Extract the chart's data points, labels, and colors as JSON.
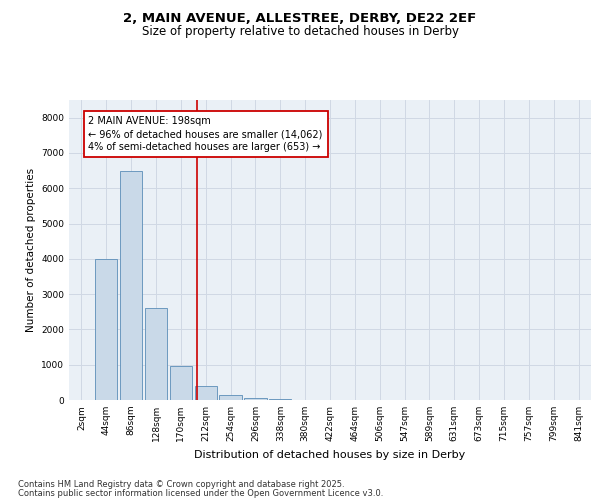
{
  "title_line1": "2, MAIN AVENUE, ALLESTREE, DERBY, DE22 2EF",
  "title_line2": "Size of property relative to detached houses in Derby",
  "xlabel": "Distribution of detached houses by size in Derby",
  "ylabel": "Number of detached properties",
  "bar_labels": [
    "2sqm",
    "44sqm",
    "86sqm",
    "128sqm",
    "170sqm",
    "212sqm",
    "254sqm",
    "296sqm",
    "338sqm",
    "380sqm",
    "422sqm",
    "464sqm",
    "506sqm",
    "547sqm",
    "589sqm",
    "631sqm",
    "673sqm",
    "715sqm",
    "757sqm",
    "799sqm",
    "841sqm"
  ],
  "bar_values": [
    10,
    4000,
    6500,
    2600,
    950,
    400,
    150,
    50,
    15,
    5,
    2,
    1,
    0,
    0,
    0,
    0,
    0,
    0,
    0,
    0,
    0
  ],
  "bar_color": "#c9d9e8",
  "bar_edge_color": "#5b8db8",
  "annotation_line1": "2 MAIN AVENUE: 198sqm",
  "annotation_line2": "← 96% of detached houses are smaller (14,062)",
  "annotation_line3": "4% of semi-detached houses are larger (653) →",
  "vline_color": "#cc0000",
  "annotation_box_color": "#cc0000",
  "vline_x_index": 4.667,
  "ylim_max": 8500,
  "yticks": [
    0,
    1000,
    2000,
    3000,
    4000,
    5000,
    6000,
    7000,
    8000
  ],
  "grid_color": "#d0d8e4",
  "background_color": "#eaf0f6",
  "footer_line1": "Contains HM Land Registry data © Crown copyright and database right 2025.",
  "footer_line2": "Contains public sector information licensed under the Open Government Licence v3.0.",
  "title_fontsize": 9.5,
  "subtitle_fontsize": 8.5,
  "ylabel_fontsize": 7.5,
  "xlabel_fontsize": 8,
  "tick_fontsize": 6.5,
  "annotation_fontsize": 7,
  "footer_fontsize": 6
}
